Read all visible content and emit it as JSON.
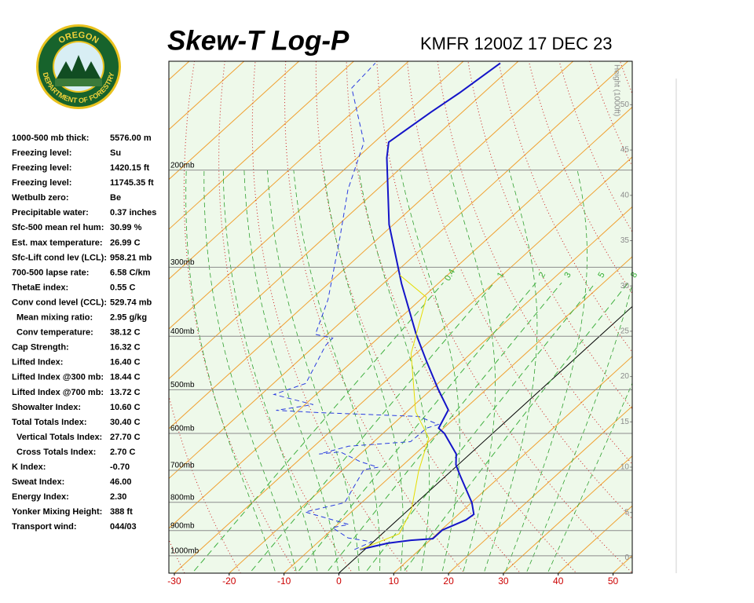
{
  "logo": {
    "top": "OREGON",
    "bottom": "DEPARTMENT OF FORESTRY"
  },
  "stats": [
    [
      "1000-500 mb thick:",
      "5576.00 m"
    ],
    [
      "Freezing level:",
      "Su"
    ],
    [
      "Freezing level:",
      "1420.15 ft"
    ],
    [
      "Freezing level:",
      "11745.35 ft"
    ],
    [
      "Wetbulb zero:",
      "Be"
    ],
    [
      "Precipitable water:",
      "0.37 inches"
    ],
    [
      "Sfc-500 mean rel hum:",
      "30.99 %"
    ],
    [
      "Est. max temperature:",
      "26.99 C"
    ],
    [
      "Sfc-Lift cond lev (LCL):",
      "958.21 mb"
    ],
    [
      "700-500 lapse rate:",
      "6.58 C/km"
    ],
    [
      "ThetaE index:",
      "0.55 C"
    ],
    [
      "Conv cond level (CCL):",
      "529.74 mb"
    ],
    [
      "Mean mixing ratio:",
      "2.95 g/kg"
    ],
    [
      "Conv temperature:",
      "38.12 C"
    ],
    [
      "Cap Strength:",
      "16.32 C"
    ],
    [
      "Lifted Index:",
      "16.40 C"
    ],
    [
      "Lifted Index @300 mb:",
      "18.44 C"
    ],
    [
      "Lifted Index @700 mb:",
      "13.72 C"
    ],
    [
      "Showalter Index:",
      "10.60 C"
    ],
    [
      "Total Totals Index:",
      "30.40 C"
    ],
    [
      "Vertical Totals Index:",
      "27.70 C"
    ],
    [
      "Cross Totals Index:",
      "2.70 C"
    ],
    [
      "K Index:",
      "-0.70"
    ],
    [
      "Sweat Index:",
      "46.00"
    ],
    [
      "Energy Index:",
      "2.30"
    ],
    [
      "Yonker Mixing Height:",
      "388 ft"
    ],
    [
      "Transport wind:",
      "044/03"
    ]
  ],
  "chart_data": {
    "type": "skew-t",
    "title": "Skew-T Log-P",
    "subtitle": "KMFR 1200Z 17 DEC 23",
    "xlim": [
      -31,
      53.5
    ],
    "xticks": [
      -30,
      -20,
      -10,
      0,
      10,
      20,
      30,
      40,
      50
    ],
    "ylim": [
      1075,
      127
    ],
    "ylog": true,
    "yticks": [
      {
        "value": 1000,
        "label": "1000mb"
      },
      {
        "value": 900,
        "label": "900mb"
      },
      {
        "value": 800,
        "label": "800mb"
      },
      {
        "value": 700,
        "label": "700mb"
      },
      {
        "value": 600,
        "label": "600mb"
      },
      {
        "value": 500,
        "label": "500mb"
      },
      {
        "value": 400,
        "label": "400mb"
      },
      {
        "value": 300,
        "label": "300mb"
      },
      {
        "value": 200,
        "label": "200mb"
      }
    ],
    "y2label": "Height (1000ft)",
    "y2lim": [
      -1.7,
      54.8
    ],
    "y2ticks": [
      0,
      5,
      10,
      15,
      20,
      25,
      30,
      35,
      40,
      45,
      50
    ],
    "mixing_ratios": [
      0.4,
      1,
      2,
      3,
      5,
      8
    ],
    "series": [
      {
        "color": "#1414c8",
        "dashed": false,
        "pressure": [
          974,
          949,
          937,
          931,
          898,
          861,
          841,
          801,
          714,
          684,
          654,
          600,
          587,
          544,
          499,
          445,
          397,
          321,
          251,
          190,
          178,
          157,
          145,
          128
        ],
        "temperature": [
          -0.9,
          2.9,
          6.5,
          10.2,
          10.2,
          12.5,
          12.8,
          10.1,
          2.4,
          -0.4,
          -2.5,
          -8.8,
          -10.9,
          -12.8,
          -18.8,
          -26.4,
          -33.8,
          -46.7,
          -60.8,
          -74.6,
          -77.4,
          -75.7,
          -74.4,
          -72.9
        ]
      },
      {
        "color": "#2a3ce0",
        "dashed": true,
        "pressure": [
          974,
          943,
          928,
          889,
          877,
          833,
          801,
          698,
          691,
          675,
          648,
          654,
          633,
          621,
          587,
          578,
          559,
          550,
          545,
          532,
          510,
          487,
          416,
          403,
          397,
          343,
          264,
          217,
          178,
          142,
          128
        ],
        "temperature": [
          -1.9,
          -0.3,
          -5.4,
          -10.3,
          -8.0,
          -18.4,
          -13.1,
          -16.2,
          -14.1,
          -18.5,
          -24.1,
          -27.5,
          -23.7,
          -13.3,
          -13.1,
          -11.7,
          -16.9,
          -36.2,
          -44.1,
          -38.5,
          -47.7,
          -44.1,
          -48.1,
          -48.3,
          -52.2,
          -56.9,
          -67.3,
          -75.3,
          -81.9,
          -95.0,
          -95.7
        ]
      },
      {
        "color": "#e6dc00",
        "dashed": false,
        "pressure": [
          974,
          912,
          827,
          703,
          612,
          548,
          430,
          340,
          310
        ],
        "temperature": [
          -0.9,
          3.1,
          0.6,
          -5.9,
          -10.7,
          -18.4,
          -30.9,
          -39.4,
          -48.7
        ]
      }
    ]
  }
}
